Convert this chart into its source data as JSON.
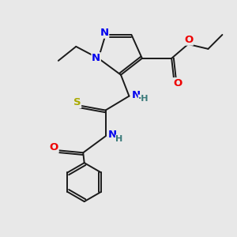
{
  "bg_color": "#e8e8e8",
  "bond_color": "#1a1a1a",
  "N_color": "#0000ee",
  "O_color": "#ee0000",
  "S_color": "#aaaa00",
  "H_color": "#3a7a7a",
  "lw": 1.4,
  "fs": 9.5,
  "fs_small": 8.0,
  "xlim": [
    0,
    10
  ],
  "ylim": [
    0,
    10
  ]
}
